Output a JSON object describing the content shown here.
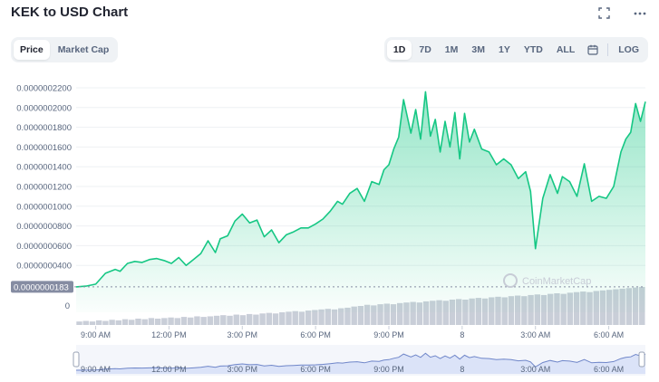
{
  "header": {
    "title": "KEK to USD Chart",
    "fullscreen_icon": "expand-icon",
    "more_icon": "more-horizontal-icon"
  },
  "tabs": [
    {
      "label": "Price",
      "active": true
    },
    {
      "label": "Market Cap",
      "active": false
    }
  ],
  "ranges": [
    {
      "label": "1D",
      "active": true
    },
    {
      "label": "7D",
      "active": false
    },
    {
      "label": "1M",
      "active": false
    },
    {
      "label": "3M",
      "active": false
    },
    {
      "label": "1Y",
      "active": false
    },
    {
      "label": "YTD",
      "active": false
    },
    {
      "label": "ALL",
      "active": false
    }
  ],
  "calendar_icon": "calendar-icon",
  "log_label": "LOG",
  "colors": {
    "line": "#16c784",
    "area_top": "#16c784",
    "volume": "#c9ced8",
    "navigator_line": "#6f86c9",
    "navigator_fill": "#dbe3f8",
    "current_label_bg": "#858ca2"
  },
  "chart_data": {
    "type": "line",
    "title": "KEK to USD Chart",
    "y_ticks": [
      "0.0000002200",
      "0.0000002000",
      "0.0000001800",
      "0.0000001600",
      "0.0000001400",
      "0.0000001200",
      "0.0000001000",
      "0.0000000800",
      "0.0000000600",
      "0.0000000400"
    ],
    "ylim": [
      1.8e-08,
      2.3e-07
    ],
    "current_price_label": "0.0000000183",
    "volume_axis_label": "0",
    "x_ticks": [
      "9:00 AM",
      "12:00 PM",
      "3:00 PM",
      "6:00 PM",
      "9:00 PM",
      "8",
      "3:00 AM",
      "6:00 AM"
    ],
    "x_tick_hours": [
      9,
      12,
      15,
      18,
      21,
      24,
      27,
      30
    ],
    "x_range_hours": [
      8.2,
      31.5
    ],
    "watermark": "CoinMarketCap",
    "series": [
      {
        "x": [
          8.2,
          8.6,
          9.0,
          9.4,
          9.8,
          10.0,
          10.3,
          10.6,
          10.9,
          11.2,
          11.5,
          11.8,
          12.1,
          12.4,
          12.7,
          13.0,
          13.3,
          13.6,
          13.9,
          14.1,
          14.4,
          14.7,
          15.0,
          15.3,
          15.6,
          15.9,
          16.2,
          16.5,
          16.8,
          17.1,
          17.4,
          17.7,
          18.0,
          18.3,
          18.6,
          18.9,
          19.1,
          19.4,
          19.7,
          20.0,
          20.3,
          20.6,
          20.8,
          21.0,
          21.2,
          21.4,
          21.6,
          21.9,
          22.1,
          22.3,
          22.5,
          22.7,
          22.9,
          23.1,
          23.3,
          23.5,
          23.7,
          23.9,
          24.1,
          24.3,
          24.5,
          24.8,
          25.1,
          25.4,
          25.7,
          26.0,
          26.3,
          26.6,
          26.8,
          27.0,
          27.3,
          27.6,
          27.9,
          28.1,
          28.4,
          28.7,
          29.0,
          29.3,
          29.6,
          29.9,
          30.2,
          30.5,
          30.7,
          30.9,
          31.1,
          31.3,
          31.5
        ],
        "y": [
          1.83e-08,
          1.9e-08,
          2.1e-08,
          3.2e-08,
          3.6e-08,
          3.4e-08,
          4.2e-08,
          4.4e-08,
          4.3e-08,
          4.6e-08,
          4.7e-08,
          4.5e-08,
          4.2e-08,
          4.8e-08,
          4e-08,
          4.6e-08,
          5.2e-08,
          6.5e-08,
          5.3e-08,
          6.7e-08,
          7e-08,
          8.5e-08,
          9.2e-08,
          8.3e-08,
          8.6e-08,
          6.9e-08,
          7.6e-08,
          6.3e-08,
          7.1e-08,
          7.4e-08,
          7.8e-08,
          7.8e-08,
          8.2e-08,
          8.7e-08,
          9.5e-08,
          1.05e-07,
          1.02e-07,
          1.13e-07,
          1.18e-07,
          1.05e-07,
          1.25e-07,
          1.22e-07,
          1.37e-07,
          1.42e-07,
          1.58e-07,
          1.7e-07,
          2.08e-07,
          1.74e-07,
          1.98e-07,
          1.68e-07,
          2.16e-07,
          1.71e-07,
          1.88e-07,
          1.55e-07,
          1.86e-07,
          1.6e-07,
          1.95e-07,
          1.48e-07,
          1.94e-07,
          1.65e-07,
          1.78e-07,
          1.58e-07,
          1.55e-07,
          1.42e-07,
          1.48e-07,
          1.42e-07,
          1.28e-07,
          1.35e-07,
          1.15e-07,
          5.7e-08,
          1.08e-07,
          1.32e-07,
          1.13e-07,
          1.3e-07,
          1.25e-07,
          1.1e-07,
          1.43e-07,
          1.05e-07,
          1.1e-07,
          1.08e-07,
          1.2e-07,
          1.55e-07,
          1.68e-07,
          1.75e-07,
          2.04e-07,
          1.86e-07,
          2.06e-07
        ]
      }
    ],
    "volume": [
      6,
      7,
      6,
      8,
      7,
      9,
      8,
      10,
      9,
      11,
      10,
      12,
      11,
      12,
      13,
      12,
      14,
      13,
      15,
      14,
      15,
      16,
      17,
      16,
      18,
      17,
      19,
      18,
      20,
      21,
      20,
      22,
      23,
      24,
      23,
      25,
      26,
      27,
      28,
      27,
      29,
      30,
      32,
      33,
      35,
      34,
      36,
      37,
      36,
      38,
      39,
      40,
      39,
      41,
      42,
      43,
      42,
      44,
      45,
      44,
      46,
      47,
      46,
      48,
      49,
      48,
      50,
      51,
      50,
      52,
      53,
      52,
      54,
      55,
      54,
      56,
      57,
      58,
      57,
      59,
      60,
      61,
      62,
      63,
      64,
      65,
      66
    ]
  }
}
